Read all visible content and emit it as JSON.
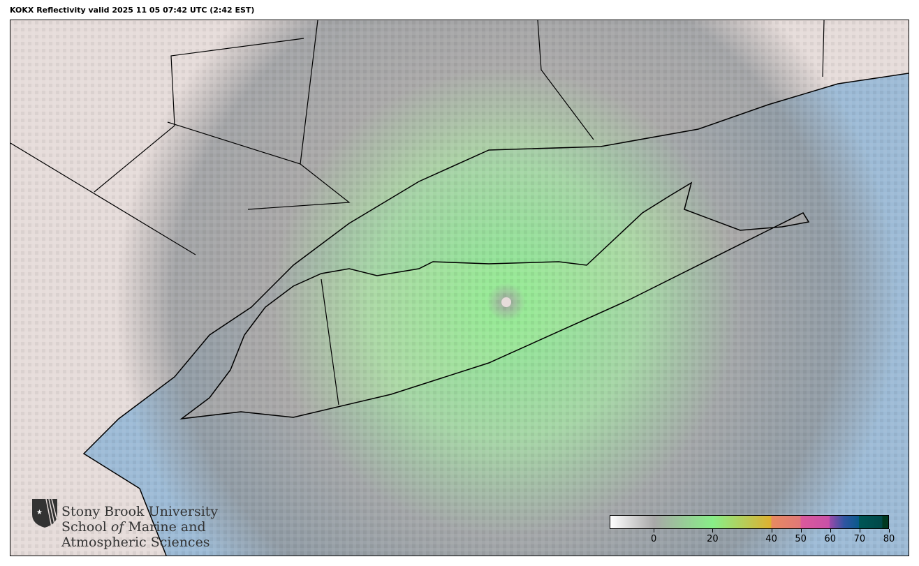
{
  "title": "KOKX Reflectivity valid 2025 11 05 07:42 UTC (2:42 EST)",
  "logo": {
    "line1": "Stony Brook University",
    "line2_a": "School ",
    "line2_b": "of",
    "line2_c": " Marine and",
    "line3": "Atmospheric Sciences"
  },
  "colorbar": {
    "min": -15,
    "max": 80,
    "ticks": [
      "0",
      "20",
      "40",
      "50",
      "60",
      "70",
      "80"
    ],
    "stops": [
      {
        "value": -15,
        "color": "#ffffff"
      },
      {
        "value": 0,
        "color": "#a8a8a8"
      },
      {
        "value": 20,
        "color": "#88ee88"
      },
      {
        "value": 40,
        "color": "#dfb030"
      },
      {
        "value": 40,
        "color": "#e88a60"
      },
      {
        "value": 50,
        "color": "#e07878"
      },
      {
        "value": 50,
        "color": "#dc5a9a"
      },
      {
        "value": 60,
        "color": "#c850a8"
      },
      {
        "value": 60,
        "color": "#9a4aaa"
      },
      {
        "value": 65,
        "color": "#2e55a2"
      },
      {
        "value": 70,
        "color": "#0a5a8a"
      },
      {
        "value": 70,
        "color": "#005656"
      },
      {
        "value": 78,
        "color": "#004848"
      },
      {
        "value": 78,
        "color": "#003820"
      }
    ]
  },
  "colors": {
    "ocean": "#9dbbd6",
    "land": "#e6dcda",
    "radar_low": "#a8a8a8",
    "radar_light": "#88ee88"
  }
}
